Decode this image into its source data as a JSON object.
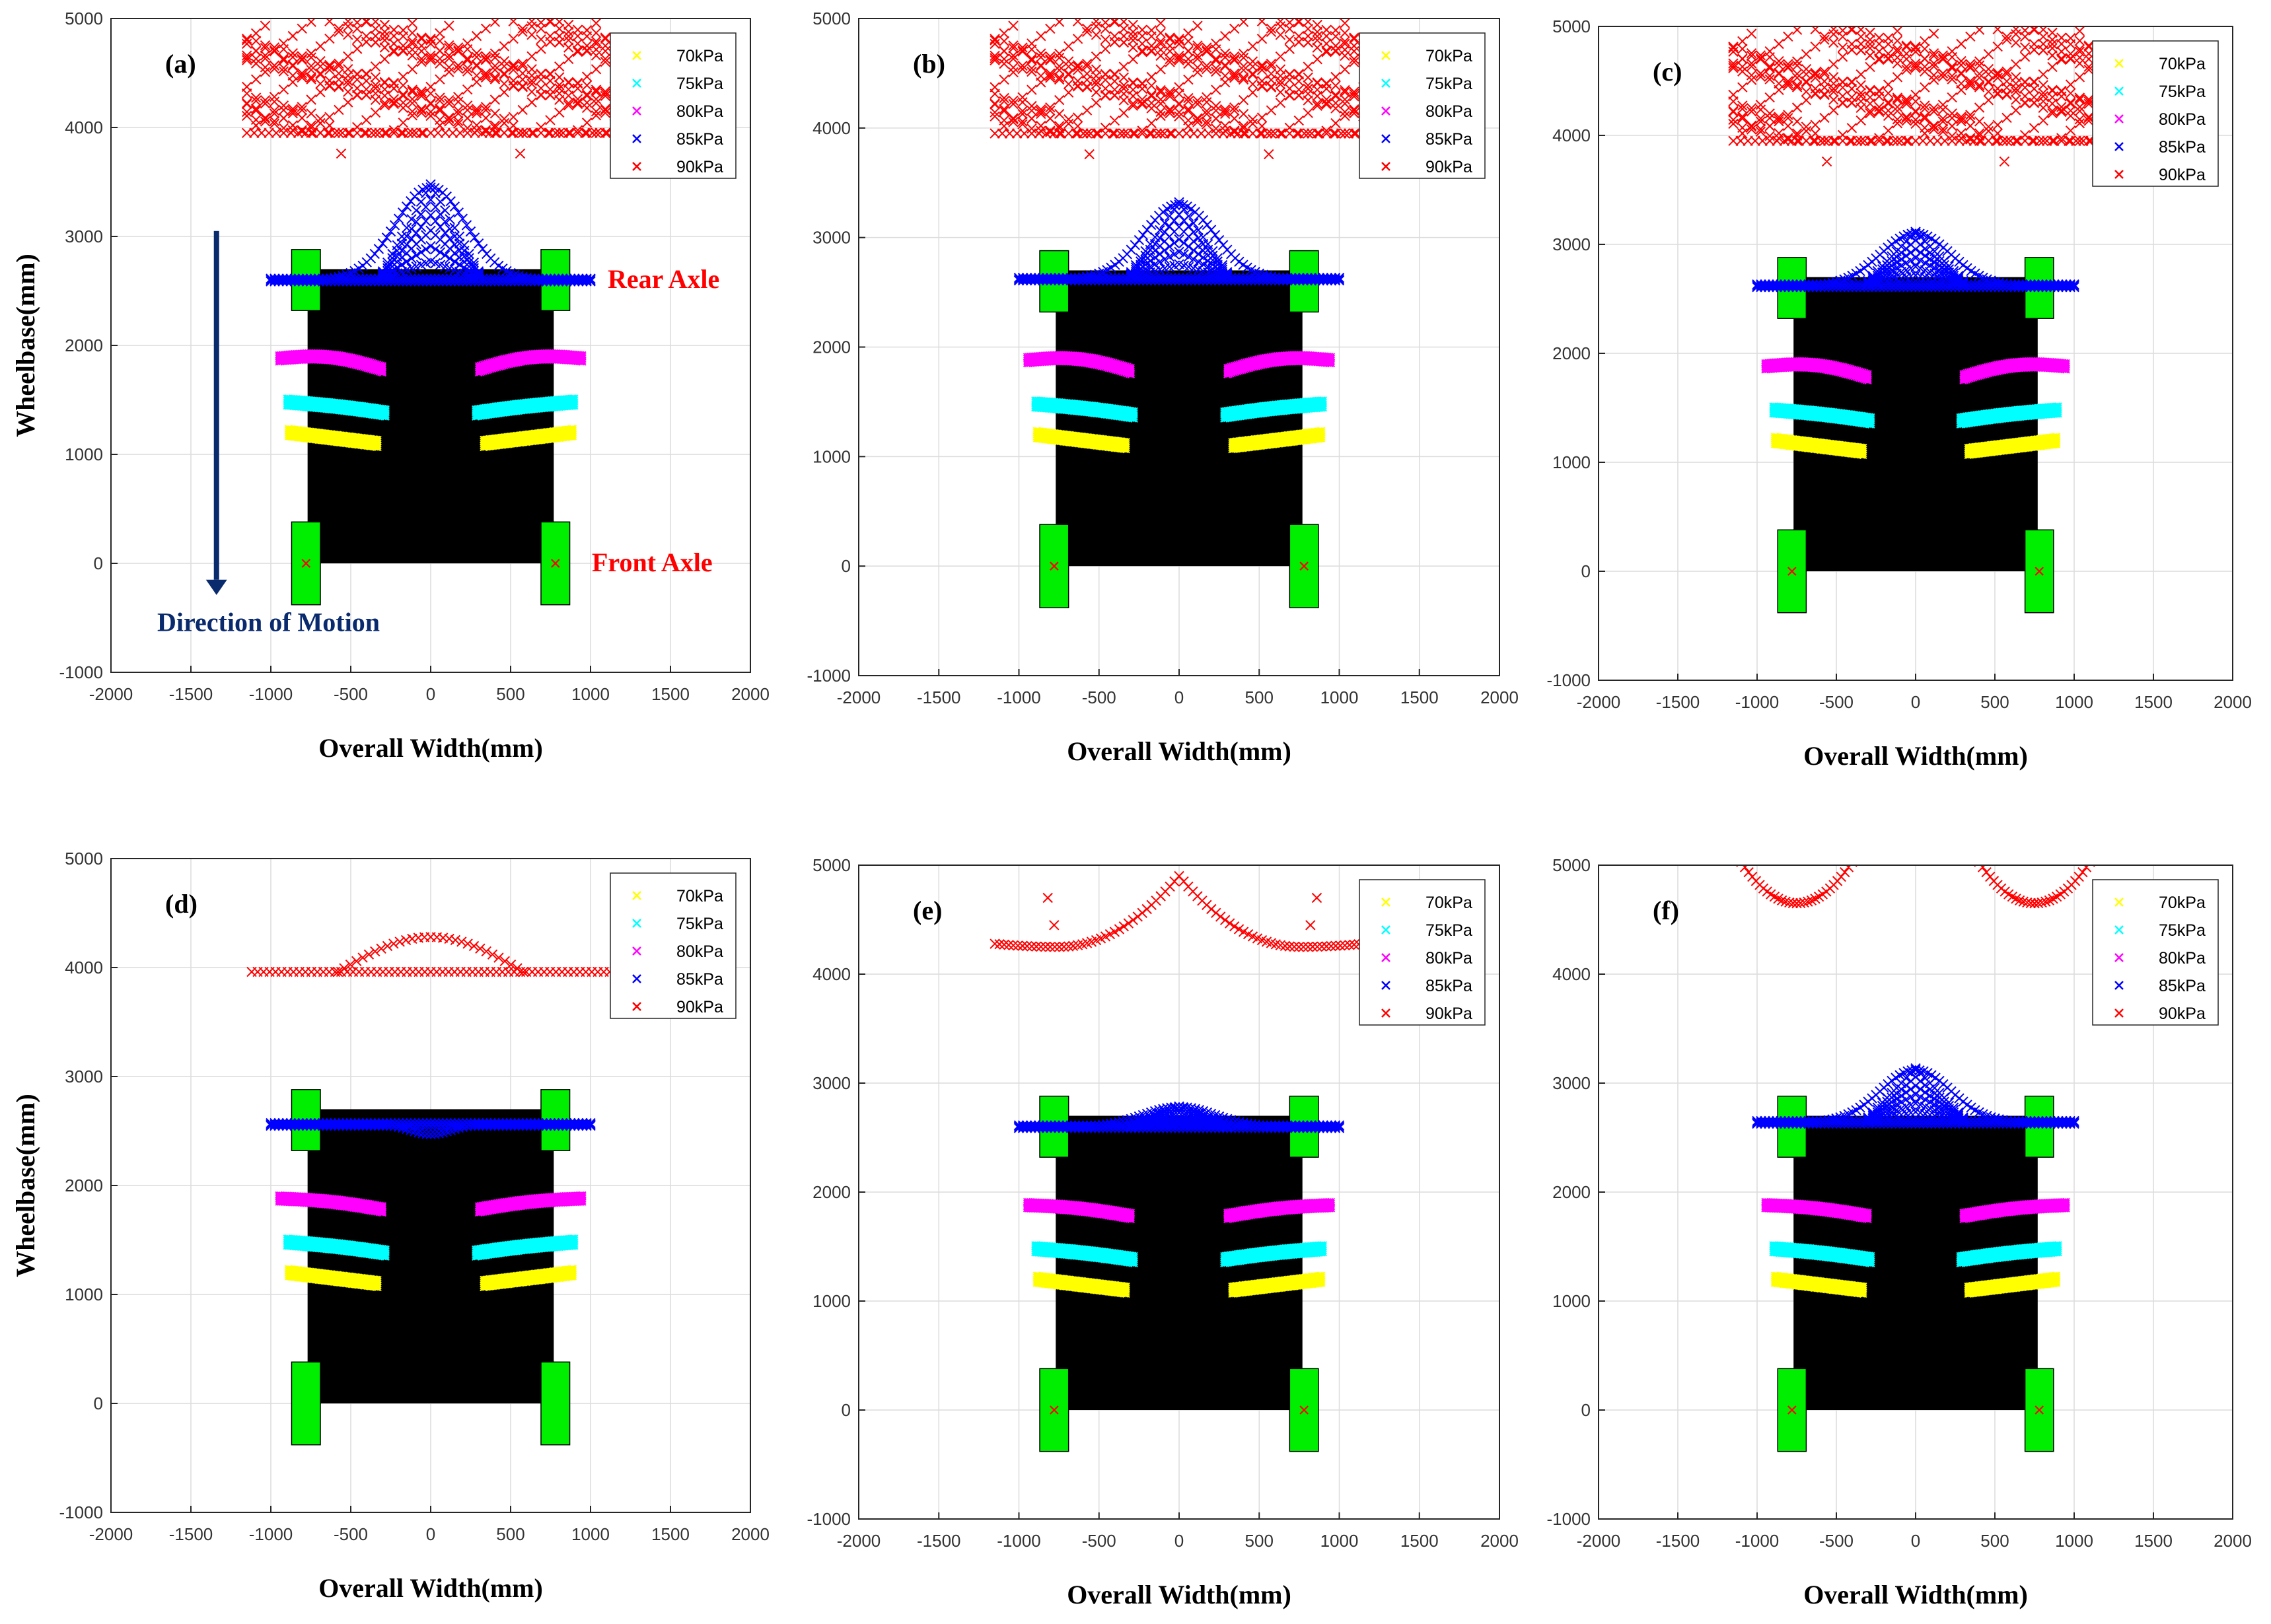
{
  "chart_data": {
    "type": "scatter",
    "shared_axes": {
      "xlabel": "Overall Width(mm)",
      "ylabel": "Wheelbase(mm)",
      "xlim": [
        -2000,
        2000
      ],
      "ylim": [
        -1000,
        5000
      ],
      "xticks": [
        "-2000",
        "-1500",
        "-1000",
        "-500",
        "0",
        "500",
        "1000",
        "1500",
        "2000"
      ],
      "yticks": [
        "-1000",
        "0",
        "1000",
        "2000",
        "3000",
        "4000",
        "5000"
      ],
      "grid": true
    },
    "legend": {
      "placement": "top-right",
      "entries": [
        {
          "label": "70kPa",
          "color": "#ffff00"
        },
        {
          "label": "75kPa",
          "color": "#00ffff"
        },
        {
          "label": "80kPa",
          "color": "#ff00ff"
        },
        {
          "label": "85kPa",
          "color": "#0000ff"
        },
        {
          "label": "90kPa",
          "color": "#ff0000"
        }
      ]
    },
    "vehicle": {
      "body_x": [
        -770,
        770
      ],
      "body_y": [
        0,
        2700
      ],
      "wheel_x": [
        -780,
        780
      ],
      "wheel_width": 180,
      "front_wheel_y": [
        -380,
        380
      ],
      "rear_wheel_y": [
        2320,
        2880
      ],
      "body_color": "#000000",
      "wheel_color": "#00ee00"
    },
    "annotations": {
      "rear_axle": "Rear Axle",
      "front_axle": "Front Axle",
      "direction": "Direction of Motion"
    },
    "panels": [
      {
        "label": "(a)",
        "p90": "dense",
        "p85_peak": 3450,
        "p85_level": 2600,
        "center_x_mark": true
      },
      {
        "label": "(b)",
        "p90": "dense",
        "p85_peak": 3300,
        "p85_level": 2620,
        "center_x_mark": true
      },
      {
        "label": "(c)",
        "p90": "dense",
        "p85_peak": 3100,
        "p85_level": 2620,
        "center_x_mark": true
      },
      {
        "label": "(d)",
        "p90": "hump",
        "p85_peak": 2500,
        "p85_level": 2560,
        "center_x_mark": false
      },
      {
        "label": "(e)",
        "p90": "arcs",
        "p85_peak": 2780,
        "p85_level": 2600,
        "center_x_mark": true
      },
      {
        "label": "(f)",
        "p90": "dip",
        "p85_peak": 3120,
        "p85_level": 2640,
        "center_x_mark": true
      }
    ]
  }
}
